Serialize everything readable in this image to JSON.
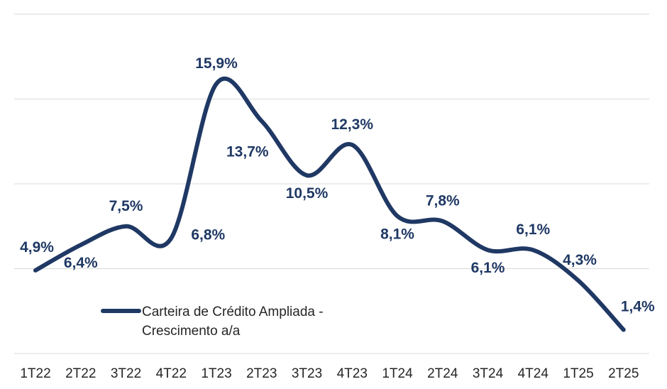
{
  "chart_data": {
    "type": "line",
    "categories": [
      "1T22",
      "2T22",
      "3T22",
      "4T22",
      "1T23",
      "2T23",
      "3T23",
      "4T23",
      "1T24",
      "2T24",
      "3T24",
      "4T24",
      "1T25",
      "2T25"
    ],
    "series": [
      {
        "name_lines": [
          "Carteira de Crédito Ampliada -",
          "Crescimento a/a"
        ],
        "color": "#1f3864",
        "values": [
          4.9,
          6.4,
          7.5,
          6.8,
          15.9,
          13.7,
          10.5,
          12.3,
          8.1,
          7.8,
          6.1,
          6.1,
          4.3,
          1.4
        ],
        "labels": [
          "4,9%",
          "6,4%",
          "7,5%",
          "6,8%",
          "15,9%",
          "13,7%",
          "10,5%",
          "12,3%",
          "8,1%",
          "7,8%",
          "6,1%",
          "6,1%",
          "4,3%",
          "1,4%"
        ]
      }
    ],
    "ylim": [
      0,
      20
    ],
    "grid": true,
    "legend_position": "bottom-left"
  }
}
